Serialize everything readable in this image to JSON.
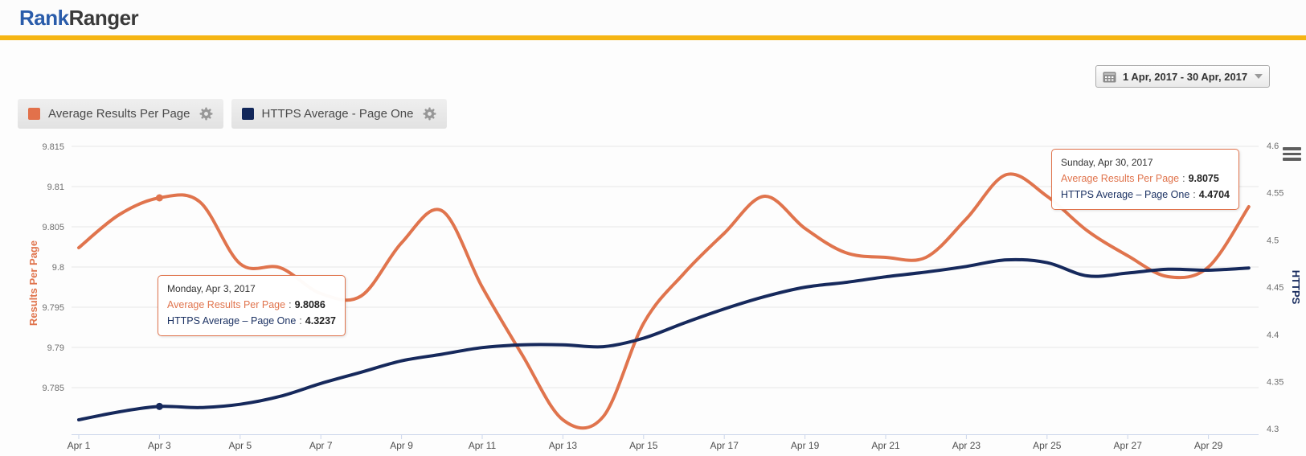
{
  "header": {
    "brand_primary": "Rank",
    "brand_secondary": "Ranger"
  },
  "toolbar": {
    "date_range_label": "1 Apr, 2017 - 30 Apr, 2017"
  },
  "legend": [
    {
      "label": "Average Results Per Page",
      "color": "#e2714b"
    },
    {
      "label": "HTTPS Average - Page One",
      "color": "#12275a"
    }
  ],
  "icons": {
    "date_button": "calendar-icon",
    "date_button_caret": "caret-down-icon",
    "legend_settings": "gear-icon",
    "chart_menu": "hamburger-menu-icon"
  },
  "colors": {
    "accent_bar": "#f5b513",
    "brand_blue": "#2a5caa",
    "series_orange": "#e0744d",
    "series_navy": "#16295c",
    "gridline": "#e7e7e7",
    "axis_line": "#ccd6eb"
  },
  "chart_data": {
    "type": "line",
    "x_labels": [
      "Apr 1",
      "Apr 2",
      "Apr 3",
      "Apr 4",
      "Apr 5",
      "Apr 6",
      "Apr 7",
      "Apr 8",
      "Apr 9",
      "Apr 10",
      "Apr 11",
      "Apr 12",
      "Apr 13",
      "Apr 14",
      "Apr 15",
      "Apr 16",
      "Apr 17",
      "Apr 18",
      "Apr 19",
      "Apr 20",
      "Apr 21",
      "Apr 22",
      "Apr 23",
      "Apr 24",
      "Apr 25",
      "Apr 26",
      "Apr 27",
      "Apr 28",
      "Apr 29",
      "Apr 30"
    ],
    "x_tick_labels": [
      "Apr 1",
      "Apr 3",
      "Apr 5",
      "Apr 7",
      "Apr 9",
      "Apr 11",
      "Apr 13",
      "Apr 15",
      "Apr 17",
      "Apr 19",
      "Apr 21",
      "Apr 23",
      "Apr 25",
      "Apr 27",
      "Apr 29"
    ],
    "series": [
      {
        "name": "Average Results Per Page",
        "axis": "left",
        "color": "#e0744d",
        "values": [
          9.8024,
          9.8065,
          9.8086,
          9.8081,
          9.8004,
          9.7999,
          9.7967,
          9.7964,
          9.803,
          9.807,
          9.7975,
          9.789,
          9.781,
          9.7814,
          9.793,
          9.7992,
          9.8042,
          9.8088,
          9.8048,
          9.8018,
          9.8012,
          9.8012,
          9.806,
          9.8115,
          9.8088,
          9.8045,
          9.8014,
          9.7988,
          9.8,
          9.8075
        ]
      },
      {
        "name": "HTTPS Average - Page One",
        "axis": "right",
        "color": "#16295c",
        "values": [
          4.3095,
          4.318,
          4.3237,
          4.3225,
          4.326,
          4.3345,
          4.348,
          4.36,
          4.372,
          4.379,
          4.386,
          4.389,
          4.389,
          4.387,
          4.396,
          4.412,
          4.427,
          4.44,
          4.45,
          4.455,
          4.461,
          4.466,
          4.472,
          4.479,
          4.476,
          4.462,
          4.465,
          4.469,
          4.468,
          4.4704
        ]
      }
    ],
    "left_axis": {
      "title": "Results Per Page",
      "color": "#e0744d",
      "ticks": [
        "9.815",
        "9.81",
        "9.805",
        "9.8",
        "9.795",
        "9.79",
        "9.785"
      ]
    },
    "right_axis": {
      "title": "HTTPS",
      "color": "#16295c",
      "ticks": [
        "4.6",
        "4.55",
        "4.5",
        "4.45",
        "4.4",
        "4.35",
        "4.3"
      ]
    },
    "markers": [
      {
        "series": 0,
        "x_index": 2
      },
      {
        "series": 1,
        "x_index": 2
      }
    ],
    "grid": "horizontal",
    "legend_position": "top-left"
  },
  "tooltips": [
    {
      "date": "Monday, Apr 3, 2017",
      "sep": ":",
      "rows": [
        {
          "label": "Average Results Per Page",
          "value": "9.8086"
        },
        {
          "label": "HTTPS Average – Page One",
          "value": "4.3237"
        }
      ]
    },
    {
      "date": "Sunday, Apr 30, 2017",
      "sep": ":",
      "rows": [
        {
          "label": "Average Results Per Page",
          "value": "9.8075"
        },
        {
          "label": "HTTPS Average – Page One",
          "value": "4.4704"
        }
      ]
    }
  ]
}
